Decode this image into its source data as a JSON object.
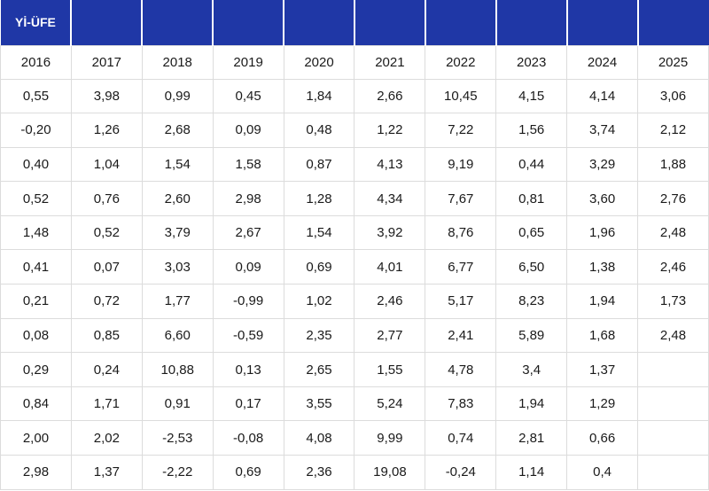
{
  "table": {
    "title": "Yİ-ÜFE",
    "years": [
      "2016",
      "2017",
      "2018",
      "2019",
      "2020",
      "2021",
      "2022",
      "2023",
      "2024",
      "2025"
    ],
    "rows": [
      [
        "0,55",
        "3,98",
        "0,99",
        "0,45",
        "1,84",
        "2,66",
        "10,45",
        "4,15",
        "4,14",
        "3,06"
      ],
      [
        "-0,20",
        "1,26",
        "2,68",
        "0,09",
        "0,48",
        "1,22",
        "7,22",
        "1,56",
        "3,74",
        "2,12"
      ],
      [
        "0,40",
        "1,04",
        "1,54",
        "1,58",
        "0,87",
        "4,13",
        "9,19",
        "0,44",
        "3,29",
        "1,88"
      ],
      [
        "0,52",
        "0,76",
        "2,60",
        "2,98",
        "1,28",
        "4,34",
        "7,67",
        "0,81",
        "3,60",
        "2,76"
      ],
      [
        "1,48",
        "0,52",
        "3,79",
        "2,67",
        "1,54",
        "3,92",
        "8,76",
        "0,65",
        "1,96",
        "2,48"
      ],
      [
        "0,41",
        "0,07",
        "3,03",
        "0,09",
        "0,69",
        "4,01",
        "6,77",
        "6,50",
        "1,38",
        "2,46"
      ],
      [
        "0,21",
        "0,72",
        "1,77",
        "-0,99",
        "1,02",
        "2,46",
        "5,17",
        "8,23",
        "1,94",
        "1,73"
      ],
      [
        "0,08",
        "0,85",
        "6,60",
        "-0,59",
        "2,35",
        "2,77",
        "2,41",
        "5,89",
        "1,68",
        "2,48"
      ],
      [
        "0,29",
        "0,24",
        "10,88",
        "0,13",
        "2,65",
        "1,55",
        "4,78",
        "3,4",
        "1,37",
        ""
      ],
      [
        "0,84",
        "1,71",
        "0,91",
        "0,17",
        "3,55",
        "5,24",
        "7,83",
        "1,94",
        "1,29",
        ""
      ],
      [
        "2,00",
        "2,02",
        "-2,53",
        "-0,08",
        "4,08",
        "9,99",
        "0,74",
        "2,81",
        "0,66",
        ""
      ],
      [
        "2,98",
        "1,37",
        "-2,22",
        "0,69",
        "2,36",
        "19,08",
        "-0,24",
        "1,14",
        "0,4",
        ""
      ]
    ]
  },
  "colors": {
    "header_bg": "#1f37a6",
    "header_text": "#ffffff",
    "grid_line": "#dcdcdc",
    "text": "#1a1a1a"
  }
}
